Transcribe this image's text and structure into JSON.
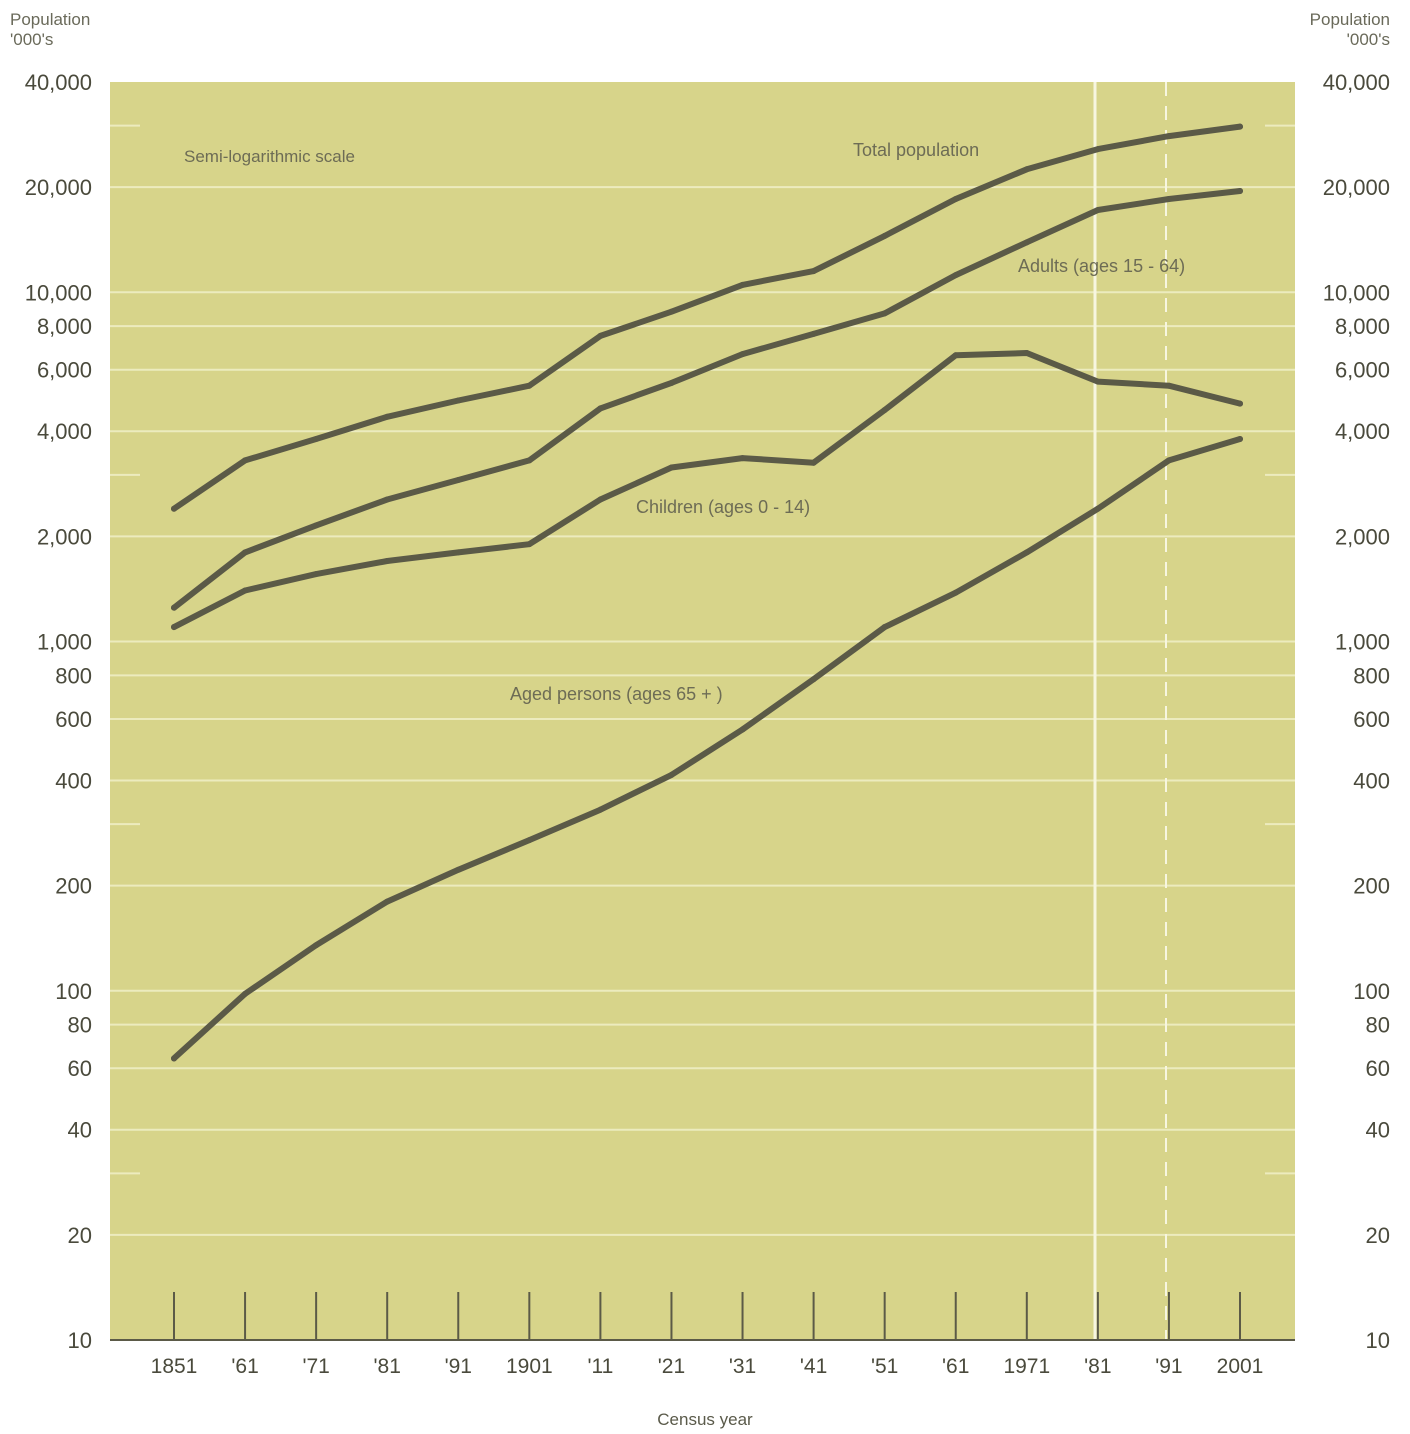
{
  "chart_data": {
    "type": "line",
    "scale": "log",
    "annotation": "Semi-logarithmic scale",
    "ylabel_line1": "Population",
    "ylabel_line2": "'000's",
    "xlabel": "Census year",
    "ylim": [
      10,
      40000
    ],
    "grid": true,
    "x": [
      1851,
      1861,
      1871,
      1881,
      1891,
      1901,
      1911,
      1921,
      1931,
      1941,
      1951,
      1961,
      1971,
      1981,
      1991,
      2001
    ],
    "x_tick_labels": [
      "1851",
      "'61",
      "'71",
      "'81",
      "'91",
      "1901",
      "'11",
      "'21",
      "'31",
      "'41",
      "'51",
      "'61",
      "1971",
      "'81",
      "'91",
      "2001"
    ],
    "y_ticks": [
      10,
      20,
      40,
      60,
      80,
      100,
      200,
      400,
      600,
      800,
      1000,
      2000,
      4000,
      6000,
      8000,
      10000,
      20000,
      40000
    ],
    "y_tick_labels": [
      "10",
      "20",
      "40",
      "60",
      "80",
      "100",
      "200",
      "400",
      "600",
      "800",
      "1,000",
      "2,000",
      "4,000",
      "6,000",
      "8,000",
      "10,000",
      "20,000",
      "40,000"
    ],
    "series": [
      {
        "name": "Total population",
        "values": [
          2400,
          3300,
          3800,
          4400,
          4900,
          5400,
          7500,
          8800,
          10500,
          11500,
          14500,
          18500,
          22500,
          25700,
          28000,
          29800
        ]
      },
      {
        "name": "Adults (ages 15 - 64)",
        "values": [
          1250,
          1800,
          2150,
          2550,
          2900,
          3300,
          4650,
          5500,
          6650,
          7600,
          8700,
          11200,
          13900,
          17200,
          18500,
          19500
        ]
      },
      {
        "name": "Children (ages 0 - 14)",
        "values": [
          1100,
          1400,
          1560,
          1700,
          1800,
          1900,
          2550,
          3150,
          3350,
          3250,
          4600,
          6600,
          6700,
          5550,
          5400,
          4800
        ]
      },
      {
        "name": "Aged persons (ages 65 + )",
        "values": [
          64,
          98,
          135,
          180,
          222,
          270,
          330,
          415,
          560,
          780,
          1100,
          1380,
          1800,
          2400,
          3300,
          3800
        ]
      }
    ],
    "series_label_positions": [
      "above-right",
      "right",
      "below",
      "left"
    ],
    "colors": {
      "plot_bg": "#d7d48a",
      "grid": "#ecebbe",
      "line": "#5b5a47",
      "text": "#4a4a3c"
    }
  }
}
